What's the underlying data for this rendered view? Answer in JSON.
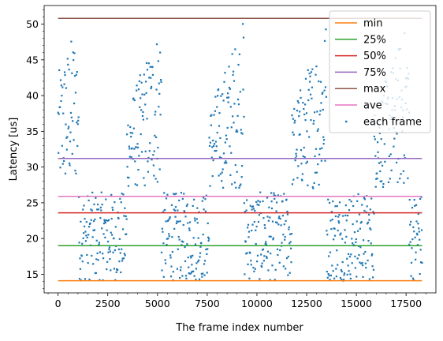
{
  "chart_data": {
    "type": "line",
    "xlabel": "The frame index number",
    "ylabel": "Latency [us]",
    "xlim": [
      -700,
      19000
    ],
    "ylim": [
      12.4,
      52.6
    ],
    "x_ticks": [
      0,
      2500,
      5000,
      7500,
      10000,
      12500,
      15000,
      17500
    ],
    "y_ticks": [
      15,
      20,
      25,
      30,
      35,
      40,
      45,
      50
    ],
    "x_tick_labels": [
      "0",
      "2500",
      "5000",
      "7500",
      "10000",
      "12500",
      "15000",
      "17500"
    ],
    "y_tick_labels": [
      "15",
      "20",
      "25",
      "30",
      "35",
      "40",
      "45",
      "50"
    ],
    "legend_position": "upper right",
    "grid": false,
    "series": [
      {
        "name": "min",
        "color": "#ff7f0e",
        "x": [
          0,
          18300
        ],
        "y": [
          14.1,
          14.1
        ]
      },
      {
        "name": "25%",
        "color": "#2ca02c",
        "x": [
          0,
          18300
        ],
        "y": [
          19.0,
          19.0
        ]
      },
      {
        "name": "50%",
        "color": "#d62728",
        "x": [
          0,
          18300
        ],
        "y": [
          23.6,
          23.6
        ]
      },
      {
        "name": "75%",
        "color": "#9467bd",
        "x": [
          0,
          18300
        ],
        "y": [
          31.2,
          31.2
        ]
      },
      {
        "name": "max",
        "color": "#8c564b",
        "x": [
          0,
          18300
        ],
        "y": [
          50.8,
          50.8
        ]
      },
      {
        "name": "ave",
        "color": "#e377c2",
        "x": [
          0,
          18300
        ],
        "y": [
          25.9,
          25.9
        ]
      }
    ],
    "scatter_series": {
      "name": "each frame",
      "color": "#1f77b4",
      "x_range": [
        0,
        18300
      ],
      "y_range": [
        14.1,
        50.8
      ]
    }
  }
}
